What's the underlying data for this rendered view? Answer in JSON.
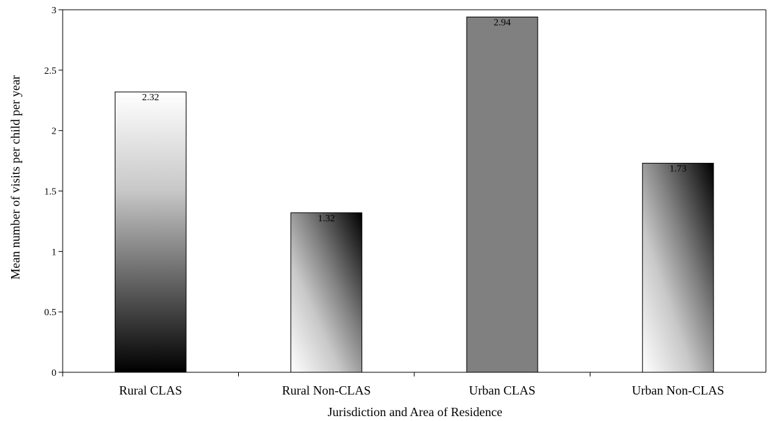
{
  "chart_data": {
    "type": "bar",
    "categories": [
      "Rural CLAS",
      "Rural Non-CLAS",
      "Urban CLAS",
      "Urban Non-CLAS"
    ],
    "values": [
      2.32,
      1.32,
      2.94,
      1.73
    ],
    "data_labels": [
      "2.32",
      "1.32",
      "2.94",
      "1.73"
    ],
    "bar_fills": [
      "gradient-vertical-white-to-black",
      "gradient-diagonal-white-to-black",
      "solid-gray",
      "gradient-diagonal-white-to-black"
    ],
    "colors": {
      "solid_bar": "#808080",
      "gradient_light": "#ffffff",
      "gradient_dark": "#000000",
      "axis": "#000000"
    },
    "title": "",
    "xlabel": "Jurisdiction and Area of Residence",
    "ylabel": "Mean number of visits per child per year",
    "ylim": [
      0,
      3
    ],
    "yticks": [
      0,
      0.5,
      1,
      1.5,
      2,
      2.5,
      3
    ],
    "ytick_labels": [
      "0",
      "0.5",
      "1",
      "1.5",
      "2",
      "2.5",
      "3"
    ],
    "grid": false,
    "legend": "none",
    "frame": "box"
  }
}
